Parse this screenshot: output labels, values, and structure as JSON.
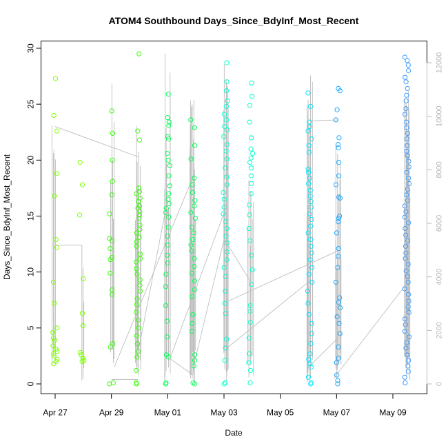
{
  "chart_data": {
    "type": "scatter",
    "title": "ATOM4 Southbound Days_Since_BdyInf_Most_Recent",
    "xlabel": "Date",
    "ylabel": "Days_Since_BdyInf_Most_Recent",
    "x_ticks": [
      "Apr 27",
      "Apr 29",
      "May 01",
      "May 03",
      "May 05",
      "May 07",
      "May 09"
    ],
    "x_tick_positions_days": [
      0,
      2,
      4,
      6,
      8,
      10,
      12
    ],
    "xlim_days_from_apr27": [
      -0.45,
      12.95
    ],
    "ylim": [
      0,
      30
    ],
    "y_ticks": [
      0,
      5,
      10,
      15,
      20,
      25,
      30
    ],
    "y2_ticks": [
      0,
      2000,
      4000,
      6000,
      8000,
      10000,
      12000
    ],
    "y2lim": [
      0,
      12500
    ],
    "grid": false,
    "colors": {
      "line": "#bdbdbd",
      "point_palette": [
        "#7cff00",
        "#33ff00",
        "#00ff55",
        "#00ffcc",
        "#00e6ff",
        "#1fa8ff",
        "#3b9bff"
      ],
      "right_axis": "#b8b8b8"
    },
    "series": [
      {
        "values_note": "",
        "clusters": [
          {
            "date": "Apr 27",
            "points": [
              27.3,
              24.0,
              22.6,
              18.8,
              16.8,
              12.9,
              12.2,
              9.1,
              7.2,
              5.0,
              4.6,
              4.1,
              3.9,
              3.4,
              3.1,
              2.9,
              2.7,
              2.5,
              2.2,
              2.0,
              1.8
            ]
          },
          {
            "date": "Apr 28",
            "points": [
              19.8,
              17.8,
              15.1,
              9.4,
              6.3,
              5.2,
              2.8,
              2.6,
              2.3,
              2.1,
              2.0
            ]
          },
          {
            "date": "Apr 29",
            "points": [
              24.4,
              22.4,
              20.0,
              18.1,
              16.9,
              15.2,
              13.0,
              12.8,
              12.1,
              11.3,
              11.1,
              9.9,
              8.4,
              8.0,
              3.6,
              3.3,
              0.1,
              0.0
            ]
          },
          {
            "date": "Apr 30",
            "points": [
              29.5,
              22.6,
              21.8,
              17.5,
              17.2,
              17.0,
              16.6,
              16.3,
              15.9,
              15.7,
              15.4,
              15.1,
              14.8,
              14.2,
              13.8,
              13.5,
              13.1,
              12.7,
              12.3,
              11.6,
              11.2,
              10.9,
              10.3,
              9.8,
              9.3,
              8.8,
              8.3,
              7.6,
              7.1,
              6.4,
              5.7,
              5.0,
              4.3,
              3.6,
              2.9,
              2.4,
              1.2,
              0.1,
              0.0
            ]
          },
          {
            "date": "May 01",
            "points": [
              25.9,
              23.8,
              23.4,
              23.1,
              22.1,
              21.9,
              20.6,
              20.0,
              19.5,
              18.6,
              17.7,
              17.0,
              16.5,
              16.1,
              15.7,
              15.3,
              14.9,
              14.0,
              13.2,
              12.4,
              11.5,
              10.8,
              9.8,
              8.7,
              7.0,
              5.6,
              4.2,
              2.6,
              2.4,
              0.1,
              0.0
            ]
          },
          {
            "date": "May 02",
            "points": [
              23.6,
              22.9,
              21.3,
              20.1,
              18.4,
              17.8,
              17.1,
              16.4,
              15.9,
              15.3,
              14.8,
              14.0,
              13.5,
              12.9,
              12.4,
              11.9,
              11.2,
              10.5,
              9.9,
              9.2,
              8.4,
              7.8,
              6.2,
              5.4,
              4.7,
              2.6,
              2.1,
              1.6,
              0.1,
              0.0
            ]
          },
          {
            "date": "May 03",
            "points": [
              28.7,
              27.0,
              26.2,
              25.3,
              24.8,
              24.1,
              23.6,
              23.0,
              22.7,
              22.1,
              21.4,
              20.8,
              20.1,
              19.3,
              18.5,
              17.8,
              17.1,
              16.5,
              15.8,
              15.2,
              14.5,
              13.9,
              13.2,
              12.6,
              11.8,
              11.1,
              10.4,
              9.6,
              8.3,
              7.2,
              6.3,
              4.0,
              3.2,
              2.1,
              0.1,
              0.0
            ]
          },
          {
            "date": "May 04",
            "points": [
              26.9,
              25.7,
              24.9,
              23.4,
              22.0,
              21.0,
              20.6,
              20.2,
              19.8,
              19.3,
              18.6,
              17.9,
              17.0,
              16.0,
              15.1,
              13.9,
              12.8,
              11.5,
              10.2,
              8.9,
              7.0,
              6.5,
              5.5,
              4.1,
              2.7,
              1.9,
              1.2,
              0.1
            ]
          },
          {
            "date": "May 06",
            "points": [
              26.0,
              24.8,
              23.4,
              23.0,
              22.6,
              21.9,
              21.3,
              20.7,
              19.2,
              18.9,
              18.4,
              17.9,
              17.3,
              16.8,
              16.3,
              15.8,
              15.2,
              14.7,
              14.1,
              13.5,
              12.9,
              12.3,
              11.7,
              11.1,
              10.4,
              9.8,
              9.1,
              8.3,
              7.2,
              6.2,
              5.4,
              4.5,
              3.6,
              2.7,
              2.2,
              1.8,
              1.5,
              0.6,
              0.1,
              0.0
            ]
          },
          {
            "date": "May 07",
            "points": [
              26.4,
              26.2,
              24.5,
              23.6,
              22.0,
              21.4,
              21.1,
              19.8,
              18.6,
              17.8,
              16.7,
              16.6,
              15.0,
              14.8,
              14.5,
              13.5,
              12.1,
              11.4,
              10.4,
              9.1,
              7.7,
              7.3,
              6.8,
              6.0,
              5.4,
              4.5,
              3.3,
              2.3,
              1.9,
              0.8,
              0.3,
              0.0
            ]
          },
          {
            "date": "May 09",
            "points": [
              29.2,
              28.9,
              28.5,
              28.0,
              27.4,
              27.0,
              26.4,
              25.8,
              25.3,
              24.6,
              24.1,
              23.4,
              22.9,
              22.4,
              21.9,
              21.3,
              20.8,
              20.4,
              19.9,
              19.4,
              18.9,
              18.4,
              17.9,
              17.4,
              16.9,
              16.4,
              15.9,
              15.4,
              14.9,
              14.4,
              13.9,
              13.3,
              12.8,
              12.3,
              11.7,
              11.2,
              10.7,
              10.1,
              9.6,
              9.1,
              8.5,
              8.0,
              7.4,
              6.9,
              6.4,
              5.8,
              5.3,
              4.7,
              4.2,
              3.7,
              3.2,
              2.6,
              2.1,
              1.6,
              1.1,
              0.6,
              0.1
            ]
          }
        ]
      }
    ]
  }
}
